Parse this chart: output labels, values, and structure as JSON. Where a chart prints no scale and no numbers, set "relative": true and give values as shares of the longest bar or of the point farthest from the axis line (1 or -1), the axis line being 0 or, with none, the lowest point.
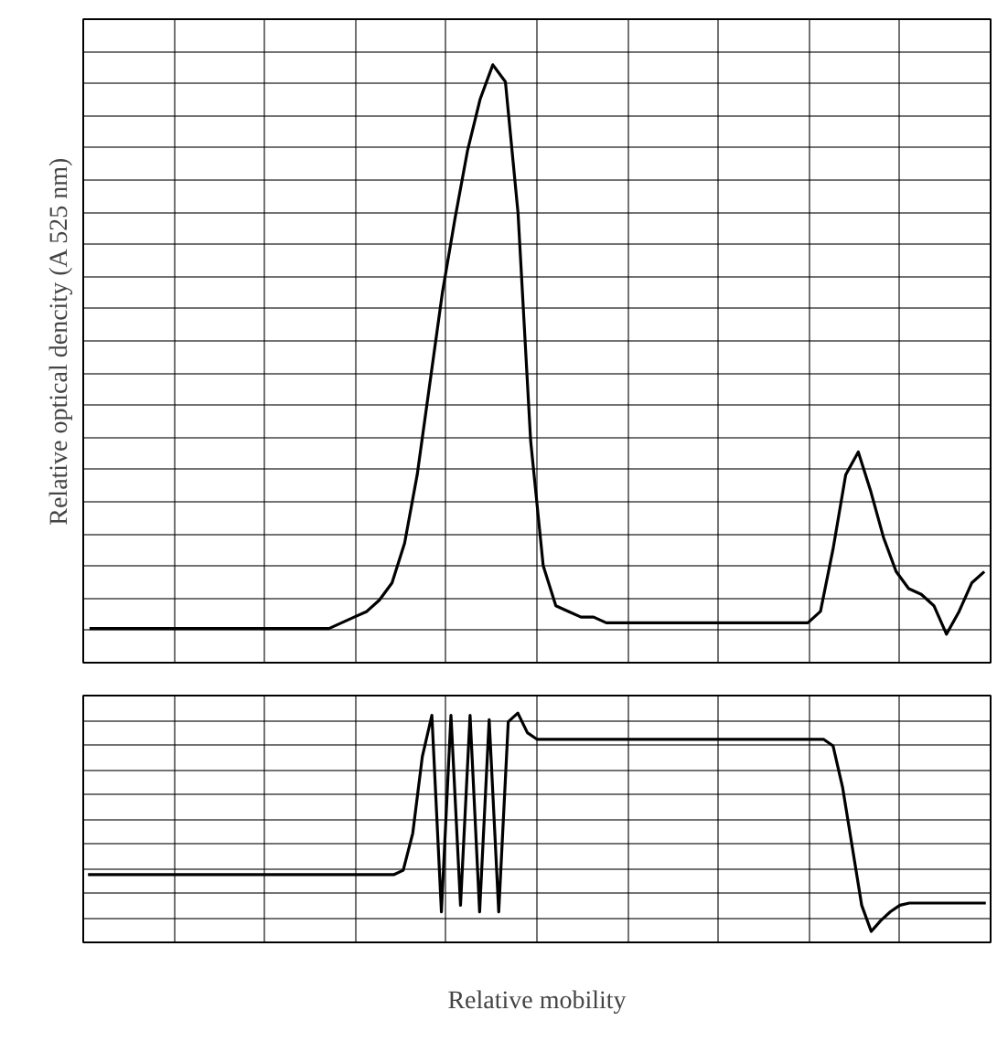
{
  "chart_data": [
    {
      "type": "line",
      "relative": true,
      "ylabel": "Relative optical dencity (A 525 nm)",
      "grid": true,
      "color": "#000000",
      "categories": [
        null,
        null,
        null,
        null,
        null,
        null,
        null,
        null,
        null,
        null,
        null,
        null,
        null,
        null,
        null,
        null,
        null,
        null,
        null,
        null,
        null,
        null,
        null,
        null,
        null,
        null,
        null,
        null,
        null,
        null,
        null,
        null,
        null,
        null,
        null,
        null,
        null,
        null,
        null,
        null,
        null,
        null,
        null,
        null,
        null,
        null,
        null,
        null,
        null,
        null,
        null,
        null,
        null,
        null,
        null,
        null,
        null,
        null,
        null,
        null,
        null,
        null,
        null,
        null,
        null,
        null,
        null,
        null,
        null,
        null,
        null,
        null
      ],
      "values": [
        0.01,
        0.01,
        0.01,
        0.01,
        0.01,
        0.01,
        0.01,
        0.01,
        0.01,
        0.01,
        0.01,
        0.01,
        0.01,
        0.01,
        0.01,
        0.01,
        0.01,
        0.01,
        0.01,
        0.01,
        0.02,
        0.03,
        0.04,
        0.06,
        0.09,
        0.16,
        0.28,
        0.44,
        0.6,
        0.73,
        0.85,
        0.94,
        1.0,
        0.97,
        0.74,
        0.34,
        0.12,
        0.05,
        0.04,
        0.03,
        0.03,
        0.02,
        0.02,
        0.02,
        0.02,
        0.02,
        0.02,
        0.02,
        0.02,
        0.02,
        0.02,
        0.02,
        0.02,
        0.02,
        0.02,
        0.02,
        0.02,
        0.02,
        0.04,
        0.15,
        0.28,
        0.32,
        0.25,
        0.17,
        0.11,
        0.08,
        0.07,
        0.05,
        0.0,
        0.04,
        0.09,
        0.11
      ]
    },
    {
      "type": "line",
      "relative": true,
      "xlabel": "Relative mobility",
      "grid": true,
      "color": "#000000",
      "categories": [
        null,
        null,
        null,
        null,
        null,
        null,
        null,
        null,
        null,
        null,
        null,
        null,
        null,
        null,
        null,
        null,
        null,
        null,
        null,
        null,
        null,
        null,
        null,
        null,
        null,
        null,
        null,
        null,
        null,
        null,
        null,
        null,
        null,
        null,
        null,
        null,
        null,
        null,
        null,
        null,
        null,
        null,
        null,
        null,
        null,
        null,
        null,
        null,
        null,
        null,
        null,
        null,
        null,
        null,
        null,
        null,
        null,
        null,
        null,
        null,
        null,
        null,
        null,
        null,
        null,
        null,
        null,
        null,
        null,
        null,
        null,
        null,
        null,
        null,
        null,
        null,
        null,
        null,
        null,
        null,
        null,
        null,
        null,
        null,
        null,
        null,
        null,
        null,
        null,
        null,
        null,
        null,
        null,
        null,
        null
      ],
      "values": [
        0.26,
        0.26,
        0.26,
        0.26,
        0.26,
        0.26,
        0.26,
        0.26,
        0.26,
        0.26,
        0.26,
        0.26,
        0.26,
        0.26,
        0.26,
        0.26,
        0.26,
        0.26,
        0.26,
        0.26,
        0.26,
        0.26,
        0.26,
        0.26,
        0.26,
        0.26,
        0.26,
        0.26,
        0.26,
        0.26,
        0.26,
        0.26,
        0.26,
        0.28,
        0.45,
        0.8,
        0.99,
        0.09,
        0.99,
        0.12,
        0.99,
        0.09,
        0.97,
        0.09,
        0.96,
        1.0,
        0.91,
        0.88,
        0.88,
        0.88,
        0.88,
        0.88,
        0.88,
        0.88,
        0.88,
        0.88,
        0.88,
        0.88,
        0.88,
        0.88,
        0.88,
        0.88,
        0.88,
        0.88,
        0.88,
        0.88,
        0.88,
        0.88,
        0.88,
        0.88,
        0.88,
        0.88,
        0.88,
        0.88,
        0.88,
        0.88,
        0.88,
        0.88,
        0.85,
        0.66,
        0.39,
        0.12,
        0.0,
        0.05,
        0.09,
        0.12,
        0.13,
        0.13,
        0.13,
        0.13,
        0.13,
        0.13,
        0.13,
        0.13,
        0.13
      ]
    }
  ]
}
